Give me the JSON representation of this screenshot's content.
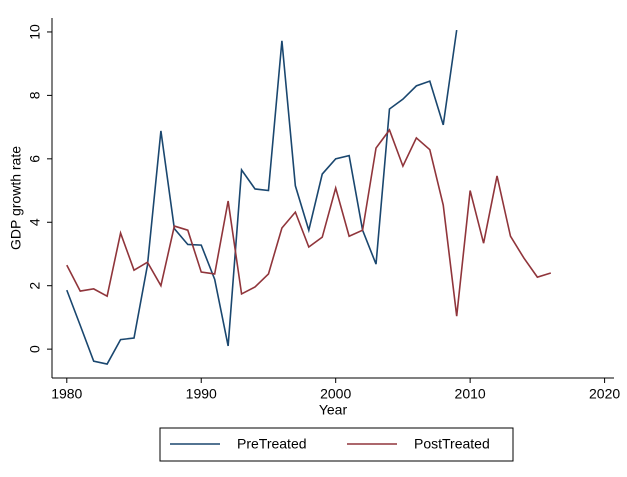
{
  "chart_data": {
    "type": "line",
    "xlabel": "Year",
    "ylabel": "GDP growth rate",
    "x": [
      1980,
      1981,
      1982,
      1983,
      1984,
      1985,
      1986,
      1987,
      1988,
      1989,
      1990,
      1991,
      1992,
      1993,
      1994,
      1995,
      1996,
      1997,
      1998,
      1999,
      2000,
      2001,
      2002,
      2003,
      2004,
      2005,
      2006,
      2007,
      2008,
      2009,
      2010,
      2011,
      2012,
      2013,
      2014,
      2015,
      2016
    ],
    "series": [
      {
        "name": "PreTreated",
        "color": "#1a476f",
        "values": [
          1.86,
          0.75,
          -0.38,
          -0.47,
          0.3,
          0.35,
          2.65,
          6.88,
          3.8,
          3.3,
          3.28,
          2.2,
          0.1,
          5.65,
          5.05,
          5.0,
          9.72,
          5.15,
          3.75,
          5.52,
          6.0,
          6.1,
          3.75,
          2.68,
          7.57,
          7.88,
          8.3,
          8.45,
          7.07,
          10.06,
          null,
          null,
          null,
          null,
          null,
          null,
          null
        ]
      },
      {
        "name": "PostTreated",
        "color": "#90353b",
        "values": [
          2.65,
          1.83,
          1.9,
          1.67,
          3.66,
          2.49,
          2.74,
          2.0,
          3.88,
          3.75,
          2.43,
          2.37,
          4.67,
          1.74,
          1.96,
          2.37,
          3.82,
          4.32,
          3.22,
          3.53,
          5.08,
          3.56,
          3.75,
          6.34,
          6.91,
          5.77,
          6.66,
          6.29,
          4.54,
          1.04,
          5.0,
          3.34,
          5.46,
          3.56,
          2.87,
          2.27,
          2.4
        ]
      }
    ],
    "xlim": [
      1978.9,
      2020.7
    ],
    "xticks": [
      1980,
      1990,
      2000,
      2010,
      2020
    ],
    "ylim": [
      -0.91,
      10.44
    ],
    "yticks": [
      0,
      2,
      4,
      6,
      8,
      10
    ],
    "grid": false,
    "legend": "bottom"
  }
}
